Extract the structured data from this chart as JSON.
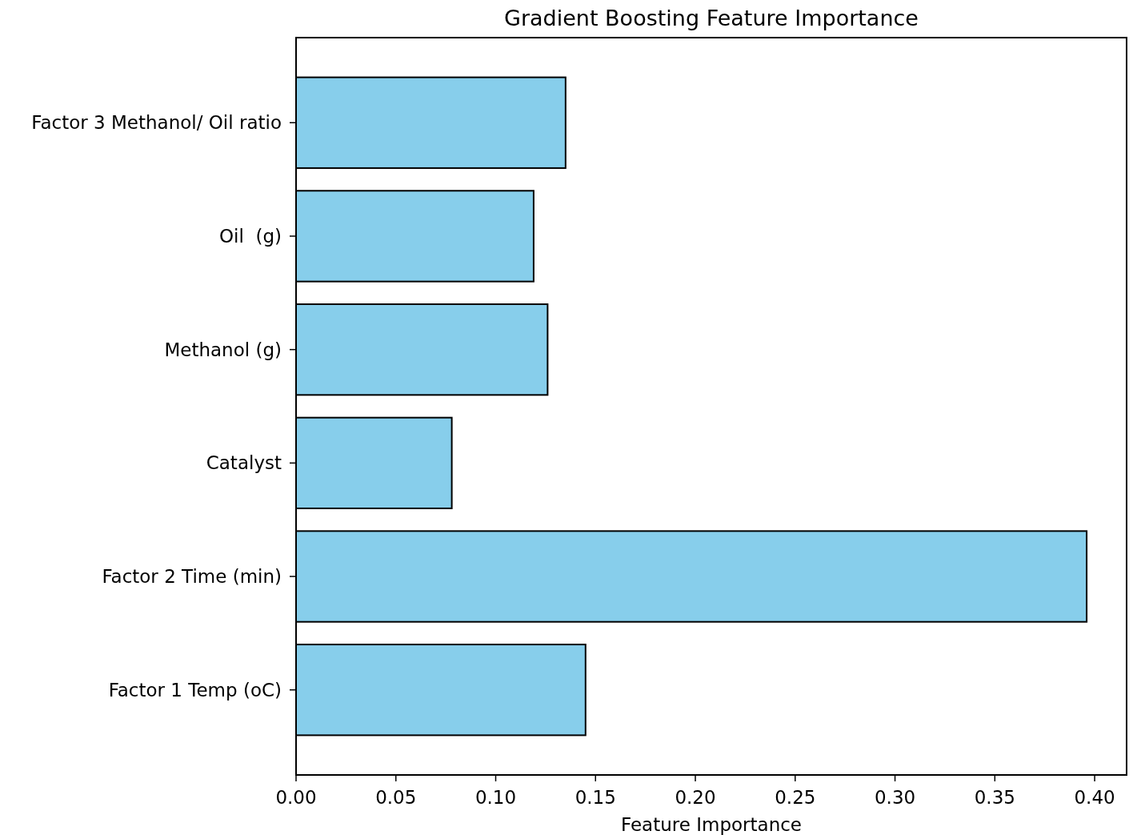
{
  "chart_data": {
    "type": "bar",
    "orientation": "horizontal",
    "title": "Gradient Boosting Feature Importance",
    "xlabel": "Feature Importance",
    "categories": [
      "Factor 3 Methanol/ Oil ratio",
      "Oil  (g)",
      "Methanol (g)",
      "Catalyst",
      "Factor 2 Time (min)",
      "Factor 1 Temp (oC)"
    ],
    "values": [
      0.135,
      0.119,
      0.126,
      0.078,
      0.396,
      0.145
    ],
    "color": "#87ceeb",
    "xlim": [
      0,
      0.416
    ],
    "xticks": [
      {
        "value": 0,
        "label": "0.00"
      },
      {
        "value": 0.05,
        "label": "0.05"
      },
      {
        "value": 0.1,
        "label": "0.10"
      },
      {
        "value": 0.15,
        "label": "0.15"
      },
      {
        "value": 0.2,
        "label": "0.20"
      },
      {
        "value": 0.25,
        "label": "0.25"
      },
      {
        "value": 0.3,
        "label": "0.30"
      },
      {
        "value": 0.35,
        "label": "0.35"
      },
      {
        "value": 0.4,
        "label": "0.40"
      }
    ],
    "grid": false
  }
}
